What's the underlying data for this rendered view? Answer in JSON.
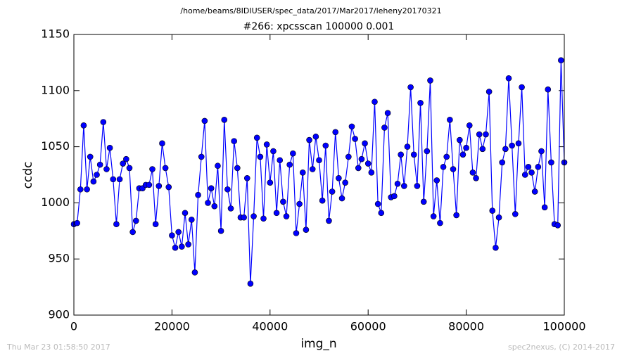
{
  "header": {
    "path": "/home/beams/8IDIUSER/spec_data/2017/Mar2017/leheny20170321"
  },
  "chart_data": {
    "type": "line",
    "title": "#266: xpcsscan 100000 0.001",
    "xlabel": "img_n",
    "ylabel": "ccdc",
    "color": "#0000ff",
    "marker": "circle",
    "x": [
      0,
      667,
      1333,
      2000,
      2667,
      3333,
      4000,
      4667,
      5333,
      6000,
      6667,
      7333,
      8000,
      8667,
      9333,
      10000,
      10667,
      11333,
      12000,
      12667,
      13333,
      14000,
      14667,
      15333,
      16000,
      16667,
      17333,
      18000,
      18667,
      19333,
      20000,
      20667,
      21333,
      22000,
      22667,
      23333,
      24000,
      24667,
      25333,
      26000,
      26667,
      27333,
      28000,
      28667,
      29333,
      30000,
      30667,
      31333,
      32000,
      32667,
      33333,
      34000,
      34667,
      35333,
      36000,
      36667,
      37333,
      38000,
      38667,
      39333,
      40000,
      40667,
      41333,
      42000,
      42667,
      43333,
      44000,
      44667,
      45333,
      46000,
      46667,
      47333,
      48000,
      48667,
      49333,
      50000,
      50667,
      51333,
      52000,
      52667,
      53333,
      54000,
      54667,
      55333,
      56000,
      56667,
      57333,
      58000,
      58667,
      59333,
      60000,
      60667,
      61333,
      62000,
      62667,
      63333,
      64000,
      64667,
      65333,
      66000,
      66667,
      67333,
      68000,
      68667,
      69333,
      70000,
      70667,
      71333,
      72000,
      72667,
      73333,
      74000,
      74667,
      75333,
      76000,
      76667,
      77333,
      78000,
      78667,
      79333,
      80000,
      80667,
      81333,
      82000,
      82667,
      83333,
      84000,
      84667,
      85333,
      86000,
      86667,
      87333,
      88000,
      88667,
      89333,
      90000,
      90667,
      91333,
      92000,
      92667,
      93333,
      94000,
      94667,
      95333,
      96000,
      96667,
      97333,
      98000,
      98667,
      99333,
      100000
    ],
    "values": [
      981,
      982,
      1012,
      1069,
      1012,
      1041,
      1019,
      1025,
      1034,
      1072,
      1030,
      1049,
      1021,
      981,
      1021,
      1035,
      1039,
      1031,
      974,
      984,
      1013,
      1013,
      1016,
      1016,
      1030,
      981,
      1015,
      1053,
      1031,
      1014,
      971,
      960,
      974,
      961,
      991,
      963,
      985,
      938,
      1007,
      1041,
      1073,
      1000,
      1013,
      997,
      1033,
      975,
      1074,
      1012,
      995,
      1055,
      1031,
      987,
      987,
      1022,
      928,
      988,
      1058,
      1041,
      986,
      1052,
      1018,
      1046,
      991,
      1038,
      1001,
      988,
      1034,
      1044,
      973,
      999,
      1027,
      976,
      1056,
      1030,
      1059,
      1038,
      1002,
      1051,
      984,
      1010,
      1063,
      1022,
      1004,
      1018,
      1041,
      1068,
      1057,
      1031,
      1039,
      1053,
      1035,
      1027,
      1090,
      999,
      991,
      1067,
      1080,
      1005,
      1006,
      1017,
      1043,
      1015,
      1050,
      1103,
      1043,
      1015,
      1089,
      1001,
      1046,
      1109,
      988,
      1020,
      982,
      1032,
      1041,
      1074,
      1030,
      989,
      1056,
      1043,
      1049,
      1069,
      1027,
      1022,
      1061,
      1048,
      1061,
      1099,
      993,
      960,
      987,
      1036,
      1048,
      1111,
      1051,
      990,
      1053,
      1103,
      1025,
      1032,
      1027,
      1010,
      1032,
      1046,
      996,
      1101,
      1036,
      981,
      980,
      1127,
      1036
    ],
    "xlim": [
      0,
      100000
    ],
    "xticks": [
      0,
      20000,
      40000,
      60000,
      80000,
      100000
    ],
    "ylim": [
      900,
      1150
    ],
    "yticks": [
      900,
      950,
      1000,
      1050,
      1100,
      1150
    ]
  },
  "footer": {
    "left": "Thu Mar 23 01:58:50 2017",
    "right": "spec2nexus, (C) 2014-2017"
  }
}
